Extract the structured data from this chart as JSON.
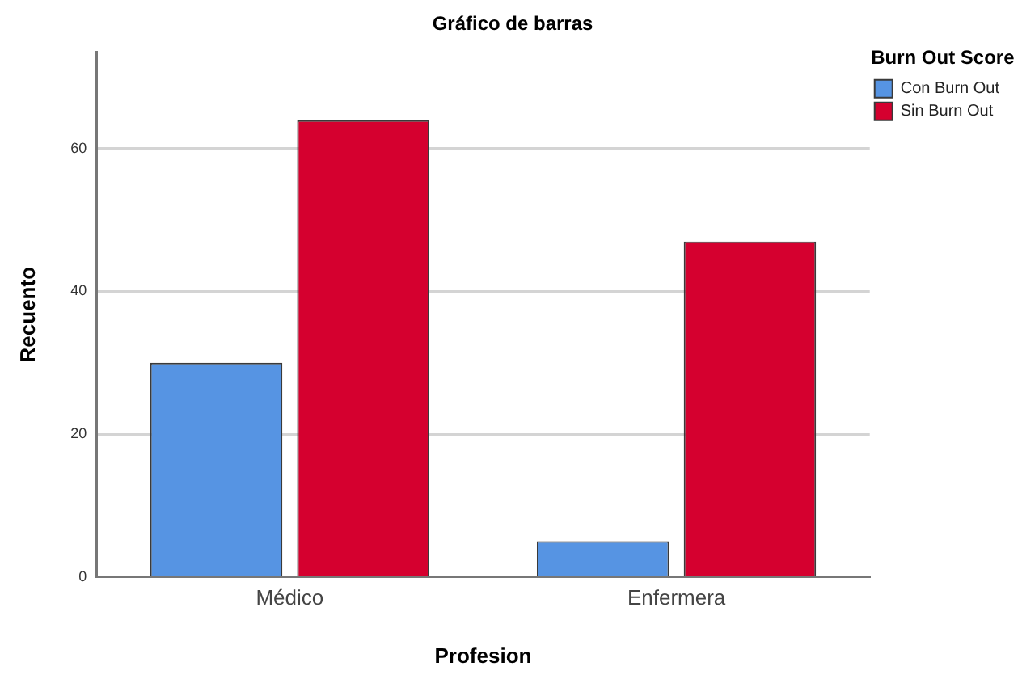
{
  "chart_data": {
    "type": "bar",
    "title": "Gráfico de barras",
    "xlabel": "Profesion",
    "ylabel": "Recuento",
    "legend_title": "Burn Out Score",
    "categories": [
      "Médico",
      "Enfermera"
    ],
    "series": [
      {
        "name": "Con Burn Out",
        "color": "#5694e3",
        "values": [
          30,
          5
        ]
      },
      {
        "name": "Sin Burn Out",
        "color": "#d5002f",
        "values": [
          64,
          47
        ]
      }
    ],
    "ylim": [
      0,
      73.5
    ],
    "yticks": [
      0,
      20,
      40,
      60
    ],
    "grid": "y",
    "legend": "top right"
  }
}
